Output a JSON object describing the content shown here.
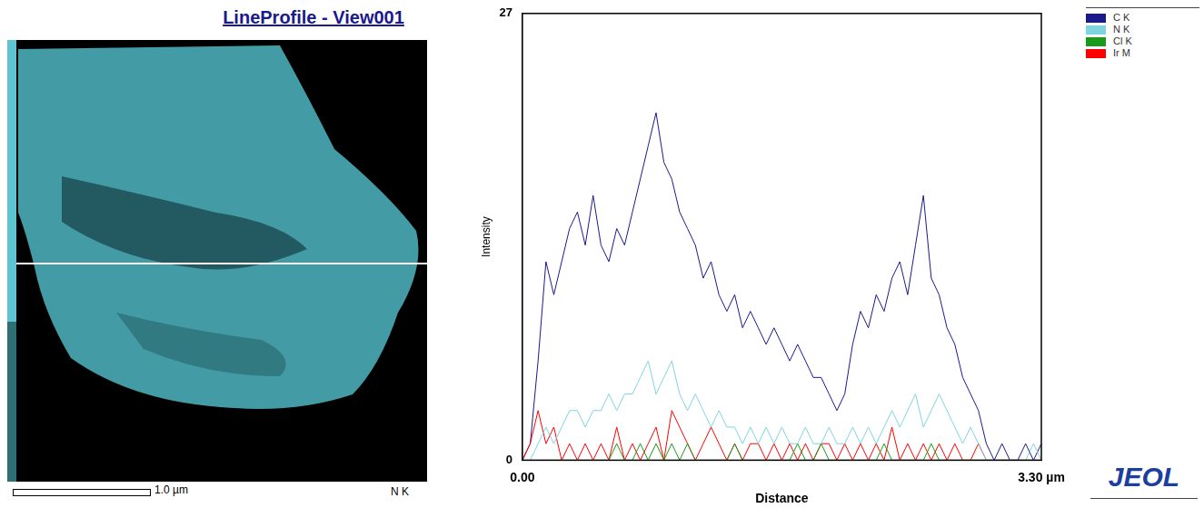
{
  "chart_data": {
    "type": "line",
    "x_label": "Distance",
    "y_label": "Intensity",
    "x": [
      0,
      0.05,
      0.1,
      0.15,
      0.2,
      0.25,
      0.3,
      0.35,
      0.4,
      0.45,
      0.5,
      0.55,
      0.6,
      0.65,
      0.7,
      0.75,
      0.8,
      0.85,
      0.9,
      0.95,
      1.0,
      1.05,
      1.1,
      1.15,
      1.2,
      1.25,
      1.3,
      1.35,
      1.4,
      1.45,
      1.5,
      1.55,
      1.6,
      1.65,
      1.7,
      1.75,
      1.8,
      1.85,
      1.9,
      1.95,
      2.0,
      2.05,
      2.1,
      2.15,
      2.2,
      2.25,
      2.3,
      2.35,
      2.4,
      2.45,
      2.5,
      2.55,
      2.6,
      2.65,
      2.7,
      2.75,
      2.8,
      2.85,
      2.9,
      2.95,
      3.0,
      3.05,
      3.1,
      3.15,
      3.2,
      3.25,
      3.3
    ],
    "series": [
      {
        "name": "C K",
        "color": "#1a1a8c",
        "values": [
          0,
          1,
          6,
          12,
          10,
          12,
          14,
          15,
          13,
          16,
          13,
          12,
          14,
          13,
          15,
          17,
          19,
          21,
          18,
          17,
          15,
          14,
          13,
          11,
          12,
          10,
          9,
          10,
          8,
          9,
          8,
          7,
          8,
          7,
          6,
          7,
          6,
          5,
          5,
          4,
          3,
          4,
          7,
          9,
          8,
          10,
          9,
          11,
          12,
          10,
          13,
          16,
          11,
          10,
          8,
          7,
          5,
          4,
          3,
          1,
          0,
          1,
          0,
          0,
          1,
          0,
          1
        ]
      },
      {
        "name": "N K",
        "color": "#7fd4e0",
        "values": [
          0,
          0,
          1,
          2,
          1,
          2,
          3,
          3,
          2,
          3,
          3,
          4,
          3,
          4,
          4,
          5,
          6,
          4,
          5,
          6,
          4,
          3,
          4,
          3,
          2,
          3,
          2,
          2,
          1,
          2,
          1,
          2,
          1,
          2,
          1,
          1,
          2,
          1,
          1,
          2,
          1,
          1,
          2,
          1,
          2,
          1,
          2,
          3,
          2,
          3,
          4,
          2,
          3,
          4,
          3,
          2,
          1,
          2,
          1,
          0,
          0,
          0,
          0,
          0,
          0,
          1,
          0
        ]
      },
      {
        "name": "Cl K",
        "color": "#1a9a1a",
        "values": [
          0,
          0,
          0,
          0,
          0,
          0,
          0,
          0,
          0,
          0,
          0,
          0,
          1,
          0,
          0,
          1,
          0,
          1,
          0,
          1,
          0,
          1,
          0,
          0,
          0,
          0,
          0,
          1,
          0,
          0,
          0,
          0,
          0,
          0,
          0,
          1,
          0,
          0,
          1,
          0,
          0,
          0,
          0,
          0,
          0,
          0,
          1,
          0,
          0,
          0,
          0,
          0,
          1,
          0,
          0,
          0,
          0,
          0,
          0,
          0,
          0,
          0,
          0,
          0,
          0,
          0,
          0
        ]
      },
      {
        "name": "Ir M",
        "color": "#ff0000",
        "values": [
          0,
          1,
          3,
          1,
          2,
          0,
          1,
          0,
          1,
          0,
          1,
          0,
          2,
          0,
          1,
          0,
          1,
          2,
          0,
          3,
          2,
          1,
          0,
          1,
          2,
          1,
          0,
          1,
          0,
          1,
          1,
          0,
          1,
          0,
          1,
          0,
          1,
          0,
          1,
          1,
          0,
          1,
          0,
          1,
          0,
          1,
          0,
          2,
          0,
          1,
          0,
          1,
          0,
          1,
          0,
          1,
          0,
          0,
          1,
          0,
          0,
          0,
          0,
          0,
          0,
          0,
          0
        ]
      }
    ],
    "xlim": [
      0,
      3.3
    ],
    "xticks": [
      {
        "value": 0,
        "label": "0.00"
      },
      {
        "value": 3.3,
        "label": "3.30 µm"
      }
    ],
    "ylim": [
      0,
      27
    ],
    "yticks": [
      0,
      27
    ],
    "grid": false,
    "legend": "top right"
  },
  "image_panel": {
    "title": "LineProfile - View001",
    "scale_bar": "1.0 µm",
    "map_label": "N K"
  },
  "logo": "JEOL"
}
